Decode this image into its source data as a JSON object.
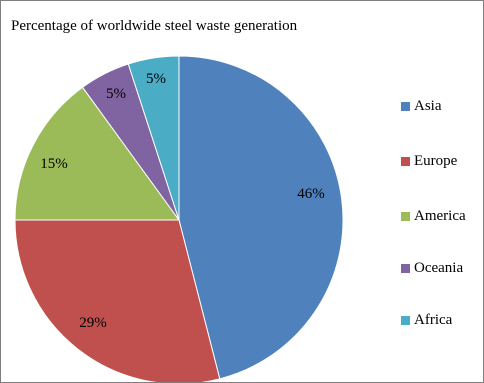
{
  "chart_data": {
    "type": "pie",
    "title": "Percentage of worldwide steel waste generation",
    "categories": [
      "Asia",
      "Europe",
      "America",
      "Oceania",
      "Africa"
    ],
    "values": [
      46,
      29,
      15,
      5,
      5
    ],
    "labels": [
      "46%",
      "29%",
      "15%",
      "5%",
      "5%"
    ],
    "colors": [
      "#4f81bd",
      "#c0504d",
      "#9bbb59",
      "#8064a2",
      "#4bacc6"
    ],
    "legend_position": "right"
  }
}
